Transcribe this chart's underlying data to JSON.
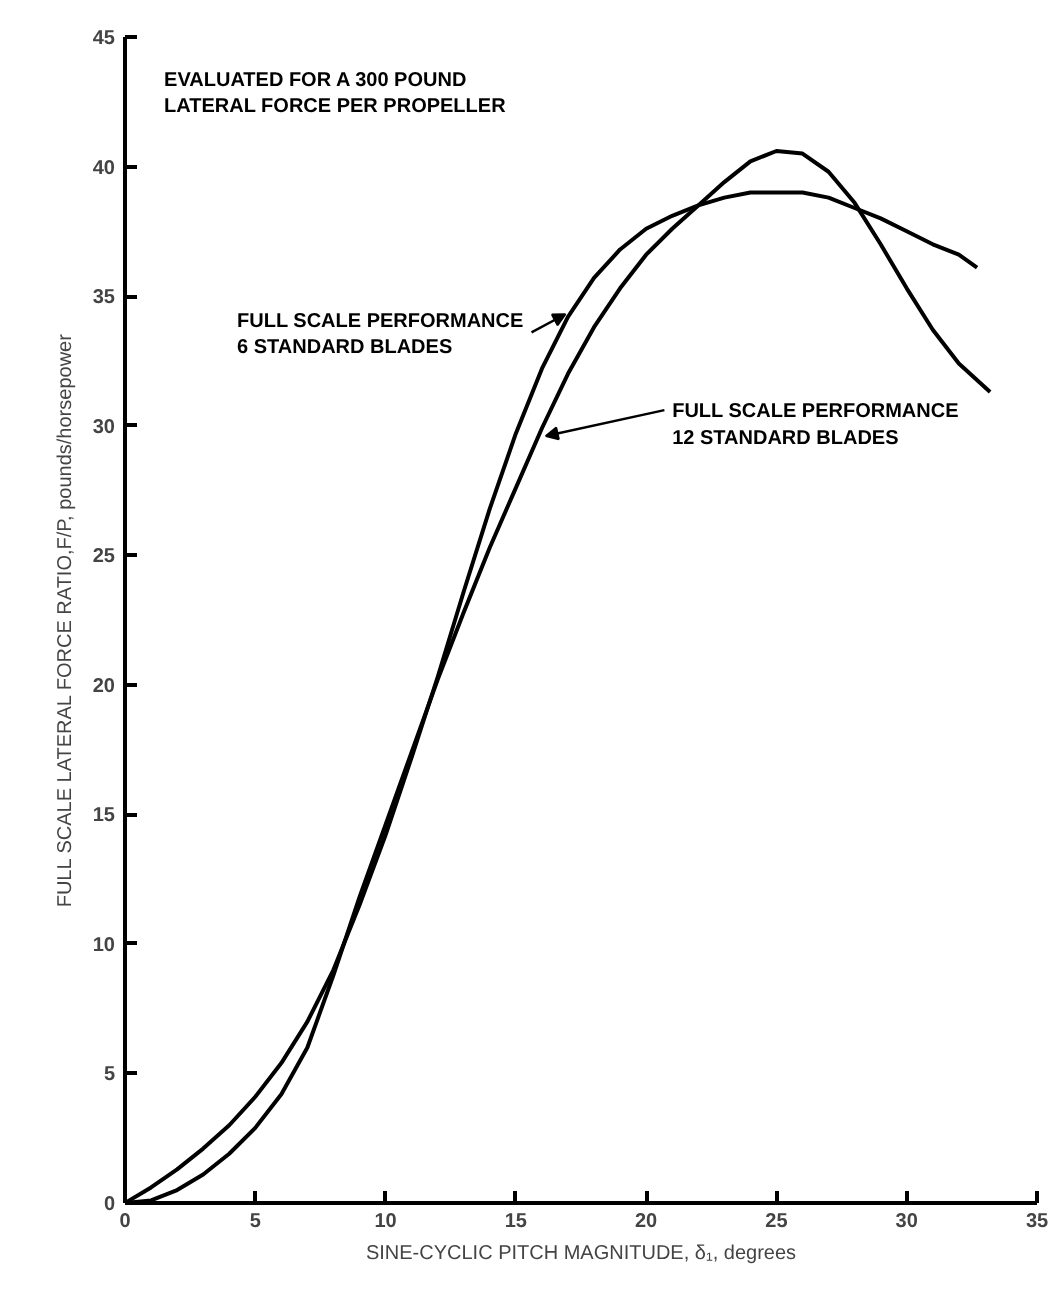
{
  "chart_data": {
    "type": "line",
    "xlabel": "SINE-CYCLIC PITCH MAGNITUDE, δ₁, degrees",
    "ylabel": "FULL SCALE LATERAL FORCE RATIO,F/P, pounds/horsepower",
    "annotations": [
      "EVALUATED FOR A 300 POUND\nLATERAL FORCE PER PROPELLER"
    ],
    "xlim": [
      0,
      35
    ],
    "ylim": [
      0,
      45
    ],
    "xticks": [
      0,
      5,
      10,
      15,
      20,
      25,
      30,
      35
    ],
    "yticks": [
      0,
      5,
      10,
      15,
      20,
      25,
      30,
      35,
      40,
      45
    ],
    "grid": false,
    "marker": "none",
    "line_style": "solid",
    "series": [
      {
        "name": "FULL SCALE PERFORMANCE\n6 STANDARD BLADES",
        "color": "#000000",
        "x": [
          0,
          1,
          2,
          3,
          4,
          5,
          6,
          7,
          8,
          9,
          10,
          11,
          12,
          13,
          14,
          15,
          16,
          17,
          18,
          19,
          20,
          21,
          22,
          23,
          24,
          25,
          26,
          27,
          28,
          29,
          30,
          31,
          32,
          32.7
        ],
        "values": [
          0,
          0.6,
          1.3,
          2.1,
          3.0,
          4.1,
          5.4,
          7.0,
          9.0,
          11.5,
          14.2,
          17.2,
          20.3,
          23.6,
          26.8,
          29.7,
          32.2,
          34.2,
          35.7,
          36.8,
          37.6,
          38.1,
          38.5,
          38.8,
          39.0,
          39.0,
          39.0,
          38.8,
          38.4,
          38.0,
          37.5,
          37.0,
          36.6,
          36.1
        ]
      },
      {
        "name": "FULL SCALE PERFORMANCE\n12 STANDARD BLADES",
        "color": "#000000",
        "x": [
          0,
          1,
          2,
          3,
          4,
          5,
          6,
          7,
          8,
          9,
          10,
          11,
          12,
          13,
          14,
          15,
          16,
          17,
          18,
          19,
          20,
          21,
          22,
          23,
          24,
          25,
          26,
          27,
          28,
          29,
          30,
          31,
          32,
          33.2
        ],
        "values": [
          0,
          0.1,
          0.5,
          1.1,
          1.9,
          2.9,
          4.2,
          6.0,
          8.8,
          11.8,
          14.6,
          17.4,
          20.2,
          22.8,
          25.3,
          27.6,
          29.9,
          32.0,
          33.8,
          35.3,
          36.6,
          37.6,
          38.5,
          39.4,
          40.2,
          40.6,
          40.5,
          39.8,
          38.6,
          37.0,
          35.3,
          33.7,
          32.4,
          31.3
        ]
      }
    ]
  }
}
